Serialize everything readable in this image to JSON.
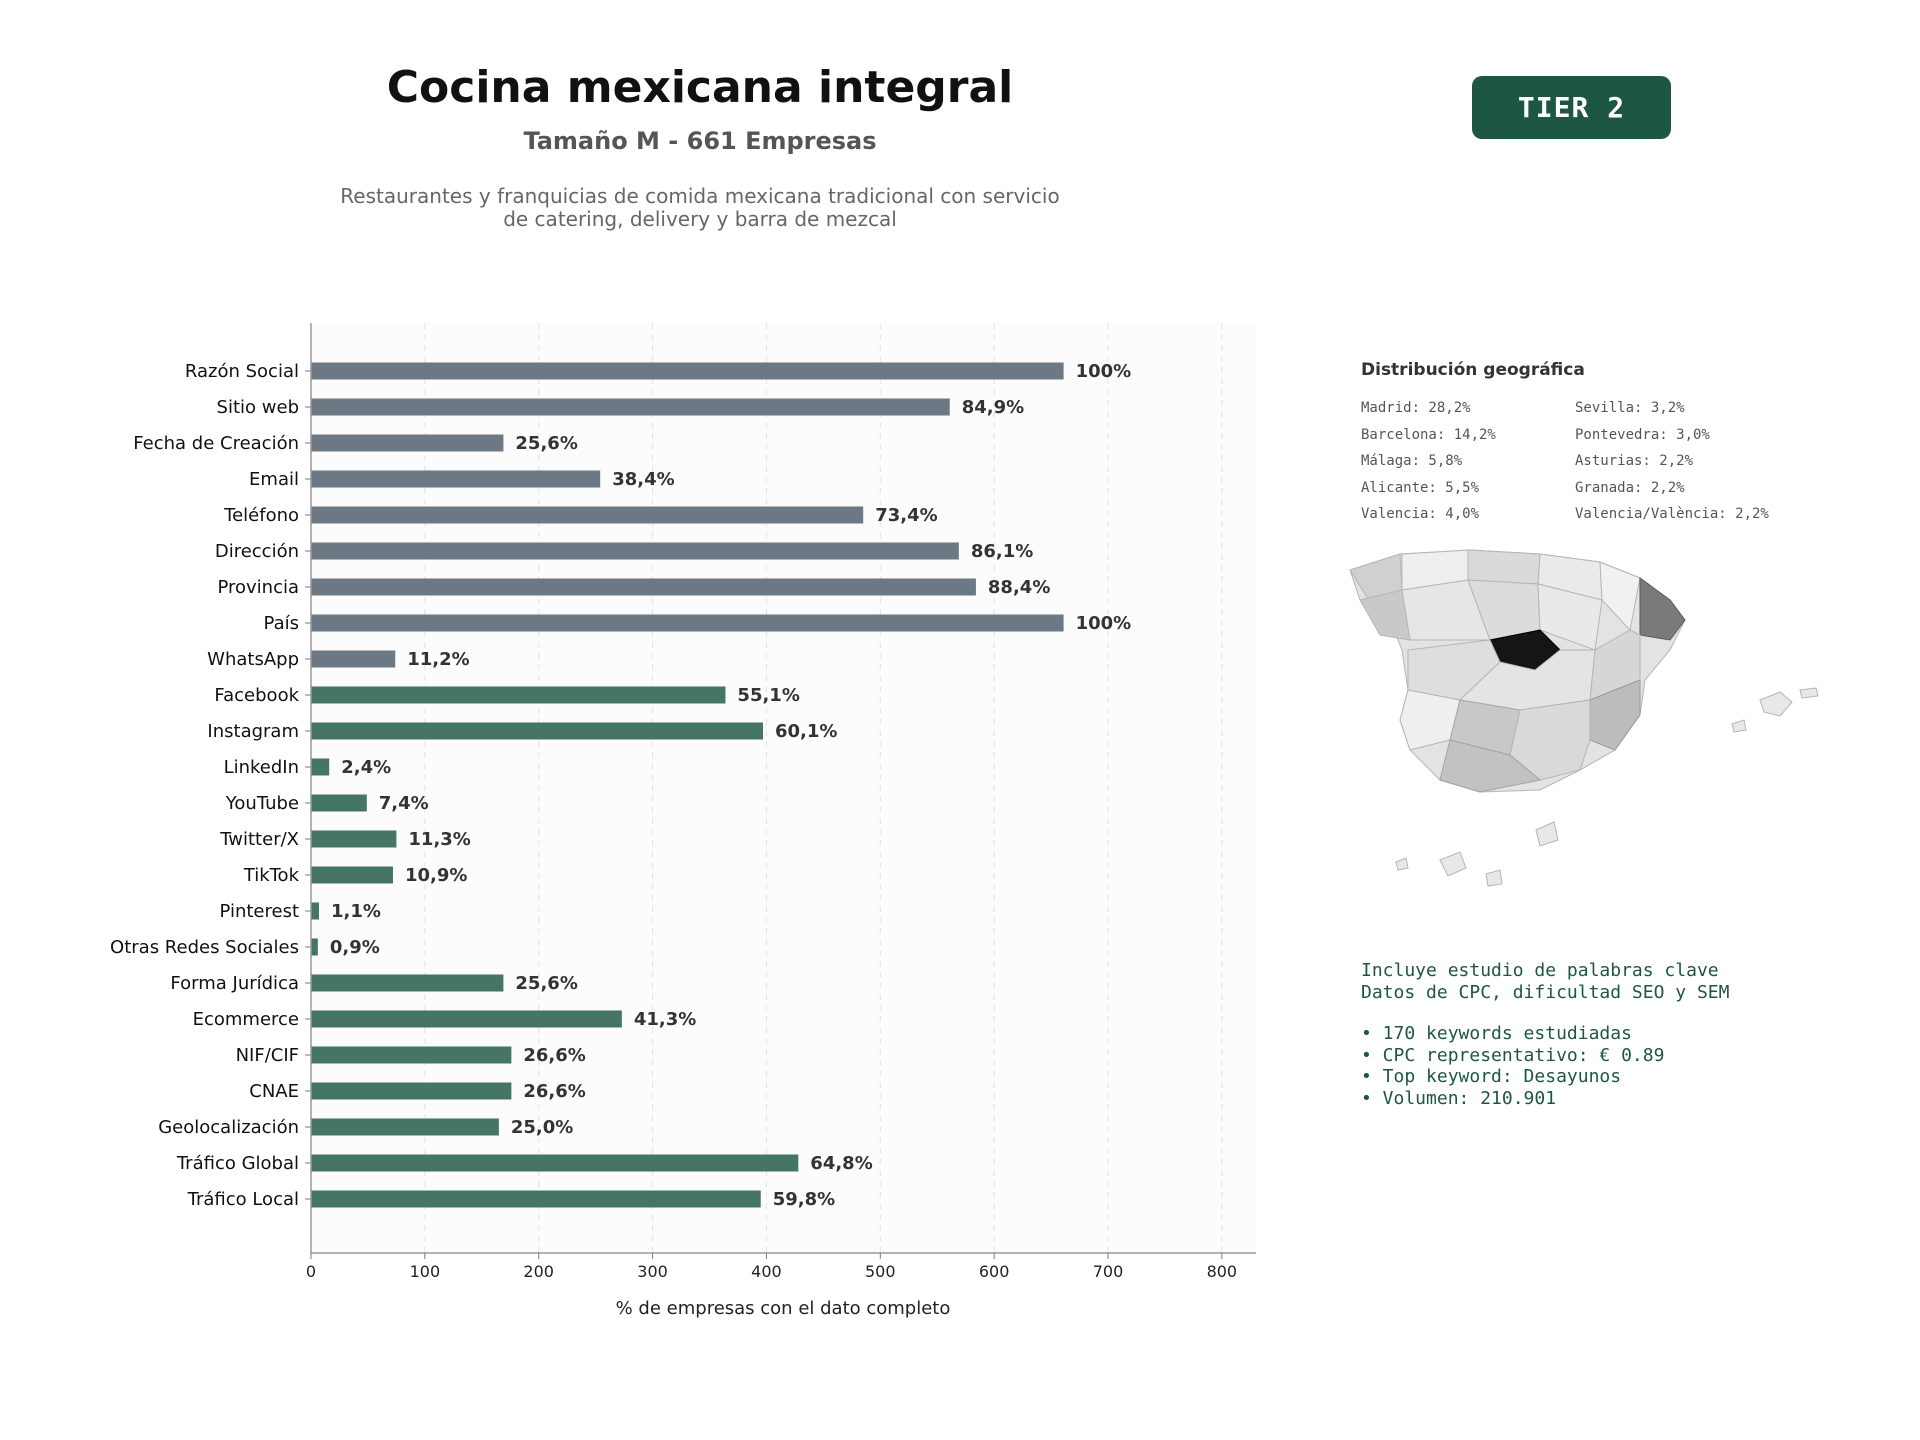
{
  "header": {
    "title": "Cocina mexicana integral",
    "subtitle": "Tamaño M - 661 Empresas",
    "description_line1": "Restaurantes y franquicias de comida mexicana tradicional con servicio",
    "description_line2": "de catering, delivery y barra de mezcal",
    "tier_label": "TIER 2"
  },
  "colors": {
    "bar_basic": "#6c7883",
    "bar_extended": "#457563",
    "tier_bg": "#1d5742",
    "keyword_text": "#1d5742"
  },
  "chart_data": {
    "type": "bar",
    "orientation": "horizontal",
    "xlabel": "% de empresas con el dato completo",
    "ylabel": "",
    "xlim": [
      0,
      830
    ],
    "xticks": [
      0,
      100,
      200,
      300,
      400,
      500,
      600,
      700,
      800
    ],
    "grid": "vertical dashed",
    "categories": [
      "Razón Social",
      "Sitio web",
      "Fecha de Creación",
      "Email",
      "Teléfono",
      "Dirección",
      "Provincia",
      "País",
      "WhatsApp",
      "Facebook",
      "Instagram",
      "LinkedIn",
      "YouTube",
      "Twitter/X",
      "TikTok",
      "Pinterest",
      "Otras Redes Sociales",
      "Forma Jurídica",
      "Ecommerce",
      "NIF/CIF",
      "CNAE",
      "Geolocalización",
      "Tráfico Global",
      "Tráfico Local"
    ],
    "values": [
      661,
      561,
      169,
      254,
      485,
      569,
      584,
      661,
      74,
      364,
      397,
      16,
      49,
      75,
      72,
      7,
      6,
      169,
      273,
      176,
      176,
      165,
      428,
      395
    ],
    "labels": [
      "100%",
      "84,9%",
      "25,6%",
      "38,4%",
      "73,4%",
      "86,1%",
      "88,4%",
      "100%",
      "11,2%",
      "55,1%",
      "60,1%",
      "2,4%",
      "7,4%",
      "11,3%",
      "10,9%",
      "1,1%",
      "0,9%",
      "25,6%",
      "41,3%",
      "26,6%",
      "26,6%",
      "25,0%",
      "64,8%",
      "59,8%"
    ],
    "groups": [
      "basic",
      "basic",
      "basic",
      "basic",
      "basic",
      "basic",
      "basic",
      "basic",
      "basic",
      "extended",
      "extended",
      "extended",
      "extended",
      "extended",
      "extended",
      "extended",
      "extended",
      "extended",
      "extended",
      "extended",
      "extended",
      "extended",
      "extended",
      "extended"
    ]
  },
  "geo": {
    "title": "Distribución geográfica",
    "items": [
      "Madrid: 28,2%",
      "Sevilla: 3,2%",
      "Barcelona: 14,2%",
      "Pontevedra: 3,0%",
      "Málaga: 5,8%",
      "Asturias: 2,2%",
      "Alicante: 5,5%",
      "Granada: 2,2%",
      "Valencia: 4,0%",
      "Valencia/València: 2,2%"
    ]
  },
  "keywords": {
    "line1": "Incluye estudio de palabras clave",
    "line2": "Datos de CPC, dificultad SEO y SEM",
    "bullets": [
      "• 170 keywords estudiadas",
      "• CPC representativo: € 0.89",
      "• Top keyword: Desayunos",
      "• Volumen: 210.901"
    ]
  }
}
